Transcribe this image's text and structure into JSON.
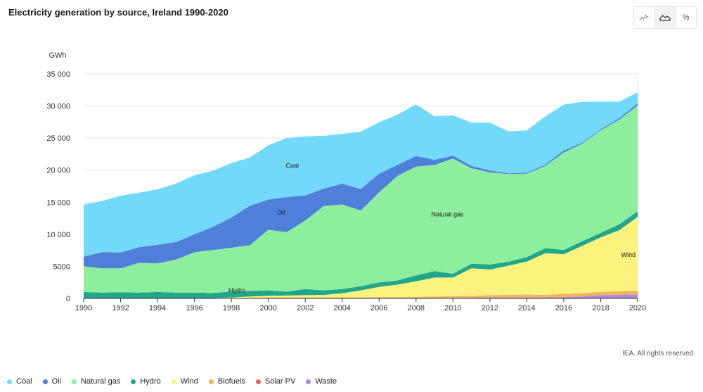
{
  "title": "Electricity generation by source, Ireland 1990-2020",
  "toolbar": [
    {
      "name": "line-view-button",
      "icon": "line-chart-icon"
    },
    {
      "name": "area-view-button",
      "icon": "area-chart-icon",
      "active": true
    },
    {
      "name": "percent-view-button",
      "icon": "percent-icon",
      "label": "%"
    }
  ],
  "credit": "IEA. All rights reserved.",
  "chart_data": {
    "type": "area",
    "stacked": true,
    "ylabel": "GWh",
    "xlabel": "",
    "ylim": [
      0,
      35000
    ],
    "yticks": [
      0,
      5000,
      10000,
      15000,
      20000,
      25000,
      30000,
      35000
    ],
    "ytick_labels": [
      "0",
      "5000",
      "10 000",
      "15 000",
      "20 000",
      "25 000",
      "30 000",
      "35 000"
    ],
    "xlim": [
      1990,
      2020
    ],
    "xticks": [
      1990,
      1992,
      1994,
      1996,
      1998,
      2000,
      2002,
      2004,
      2006,
      2008,
      2010,
      2012,
      2014,
      2016,
      2018,
      2020
    ],
    "grid": true,
    "legend_position": "bottom",
    "x": [
      1990,
      1991,
      1992,
      1993,
      1994,
      1995,
      1996,
      1997,
      1998,
      1999,
      2000,
      2001,
      2002,
      2003,
      2004,
      2005,
      2006,
      2007,
      2008,
      2009,
      2010,
      2011,
      2012,
      2013,
      2014,
      2015,
      2016,
      2017,
      2018,
      2019,
      2020
    ],
    "series": [
      {
        "name": "Waste",
        "color": "#a78be0",
        "values": [
          0,
          0,
          0,
          0,
          0,
          0,
          0,
          0,
          0,
          0,
          0,
          0,
          0,
          0,
          0,
          0,
          0,
          0,
          0,
          50,
          100,
          100,
          150,
          150,
          150,
          150,
          200,
          300,
          500,
          550,
          600
        ]
      },
      {
        "name": "Solar PV",
        "color": "#e8675f",
        "values": [
          0,
          0,
          0,
          0,
          0,
          0,
          0,
          0,
          0,
          0,
          0,
          0,
          0,
          0,
          0,
          0,
          0,
          0,
          0,
          0,
          0,
          0,
          0,
          0,
          0,
          0,
          0,
          10,
          20,
          30,
          40
        ]
      },
      {
        "name": "Biofuels",
        "color": "#f2b25c",
        "values": [
          0,
          0,
          0,
          0,
          0,
          0,
          0,
          0,
          50,
          100,
          150,
          150,
          150,
          150,
          150,
          150,
          200,
          200,
          250,
          250,
          250,
          300,
          350,
          400,
          450,
          400,
          500,
          500,
          500,
          550,
          550
        ]
      },
      {
        "name": "Wind",
        "color": "#fbf37d",
        "values": [
          0,
          0,
          0,
          0,
          0,
          0,
          0,
          50,
          100,
          200,
          250,
          300,
          350,
          400,
          650,
          1100,
          1600,
          1950,
          2400,
          2950,
          2900,
          4300,
          4000,
          4550,
          5150,
          6500,
          6200,
          7400,
          8500,
          9500,
          11500
        ]
      },
      {
        "name": "Hydro",
        "color": "#22a68a",
        "values": [
          1000,
          900,
          950,
          900,
          1000,
          900,
          900,
          800,
          900,
          850,
          850,
          600,
          950,
          700,
          650,
          650,
          700,
          650,
          950,
          1000,
          600,
          700,
          800,
          600,
          700,
          800,
          650,
          700,
          700,
          900,
          900
        ]
      },
      {
        "name": "Natural gas",
        "color": "#8def9e",
        "values": [
          4000,
          3800,
          3750,
          4650,
          4450,
          5150,
          6300,
          6700,
          6850,
          7150,
          9450,
          9300,
          10700,
          13150,
          13200,
          11800,
          14050,
          16300,
          16950,
          16550,
          17950,
          14900,
          14350,
          13700,
          13000,
          12800,
          15200,
          15200,
          16000,
          16300,
          16500
        ]
      },
      {
        "name": "Oil",
        "color": "#4f7fd9",
        "values": [
          1500,
          2500,
          2450,
          2450,
          2900,
          2750,
          2800,
          3600,
          4700,
          6150,
          4700,
          5450,
          3900,
          2700,
          3250,
          3350,
          2900,
          1700,
          1650,
          800,
          450,
          350,
          300,
          100,
          150,
          200,
          300,
          150,
          150,
          250,
          350
        ]
      },
      {
        "name": "Coal",
        "color": "#72d9fb",
        "values": [
          8100,
          8000,
          8850,
          8500,
          8650,
          9100,
          9200,
          8750,
          8500,
          7500,
          8500,
          9200,
          9200,
          8250,
          7750,
          8950,
          8000,
          7850,
          8050,
          6800,
          6300,
          6750,
          7450,
          6550,
          6600,
          7550,
          7150,
          6400,
          4300,
          2600,
          1700
        ]
      }
    ],
    "legend": [
      {
        "name": "Coal",
        "color": "#72d9fb"
      },
      {
        "name": "Oil",
        "color": "#4f7fd9"
      },
      {
        "name": "Natural gas",
        "color": "#8def9e"
      },
      {
        "name": "Hydro",
        "color": "#22a68a"
      },
      {
        "name": "Wind",
        "color": "#fbf37d"
      },
      {
        "name": "Biofuels",
        "color": "#f2b25c"
      },
      {
        "name": "Solar PV",
        "color": "#e8675f"
      },
      {
        "name": "Waste",
        "color": "#a78be0"
      }
    ],
    "annotations": [
      {
        "text": "Coal",
        "x": 2001.3,
        "y": 20350
      },
      {
        "text": "Oil",
        "x": 2000.7,
        "y": 13050
      },
      {
        "text": "Natural gas",
        "x": 2009.7,
        "y": 12800
      },
      {
        "text": "Wind",
        "x": 2019.5,
        "y": 6450
      },
      {
        "text": "Hydro",
        "x": 1998.3,
        "y": 950
      }
    ]
  }
}
